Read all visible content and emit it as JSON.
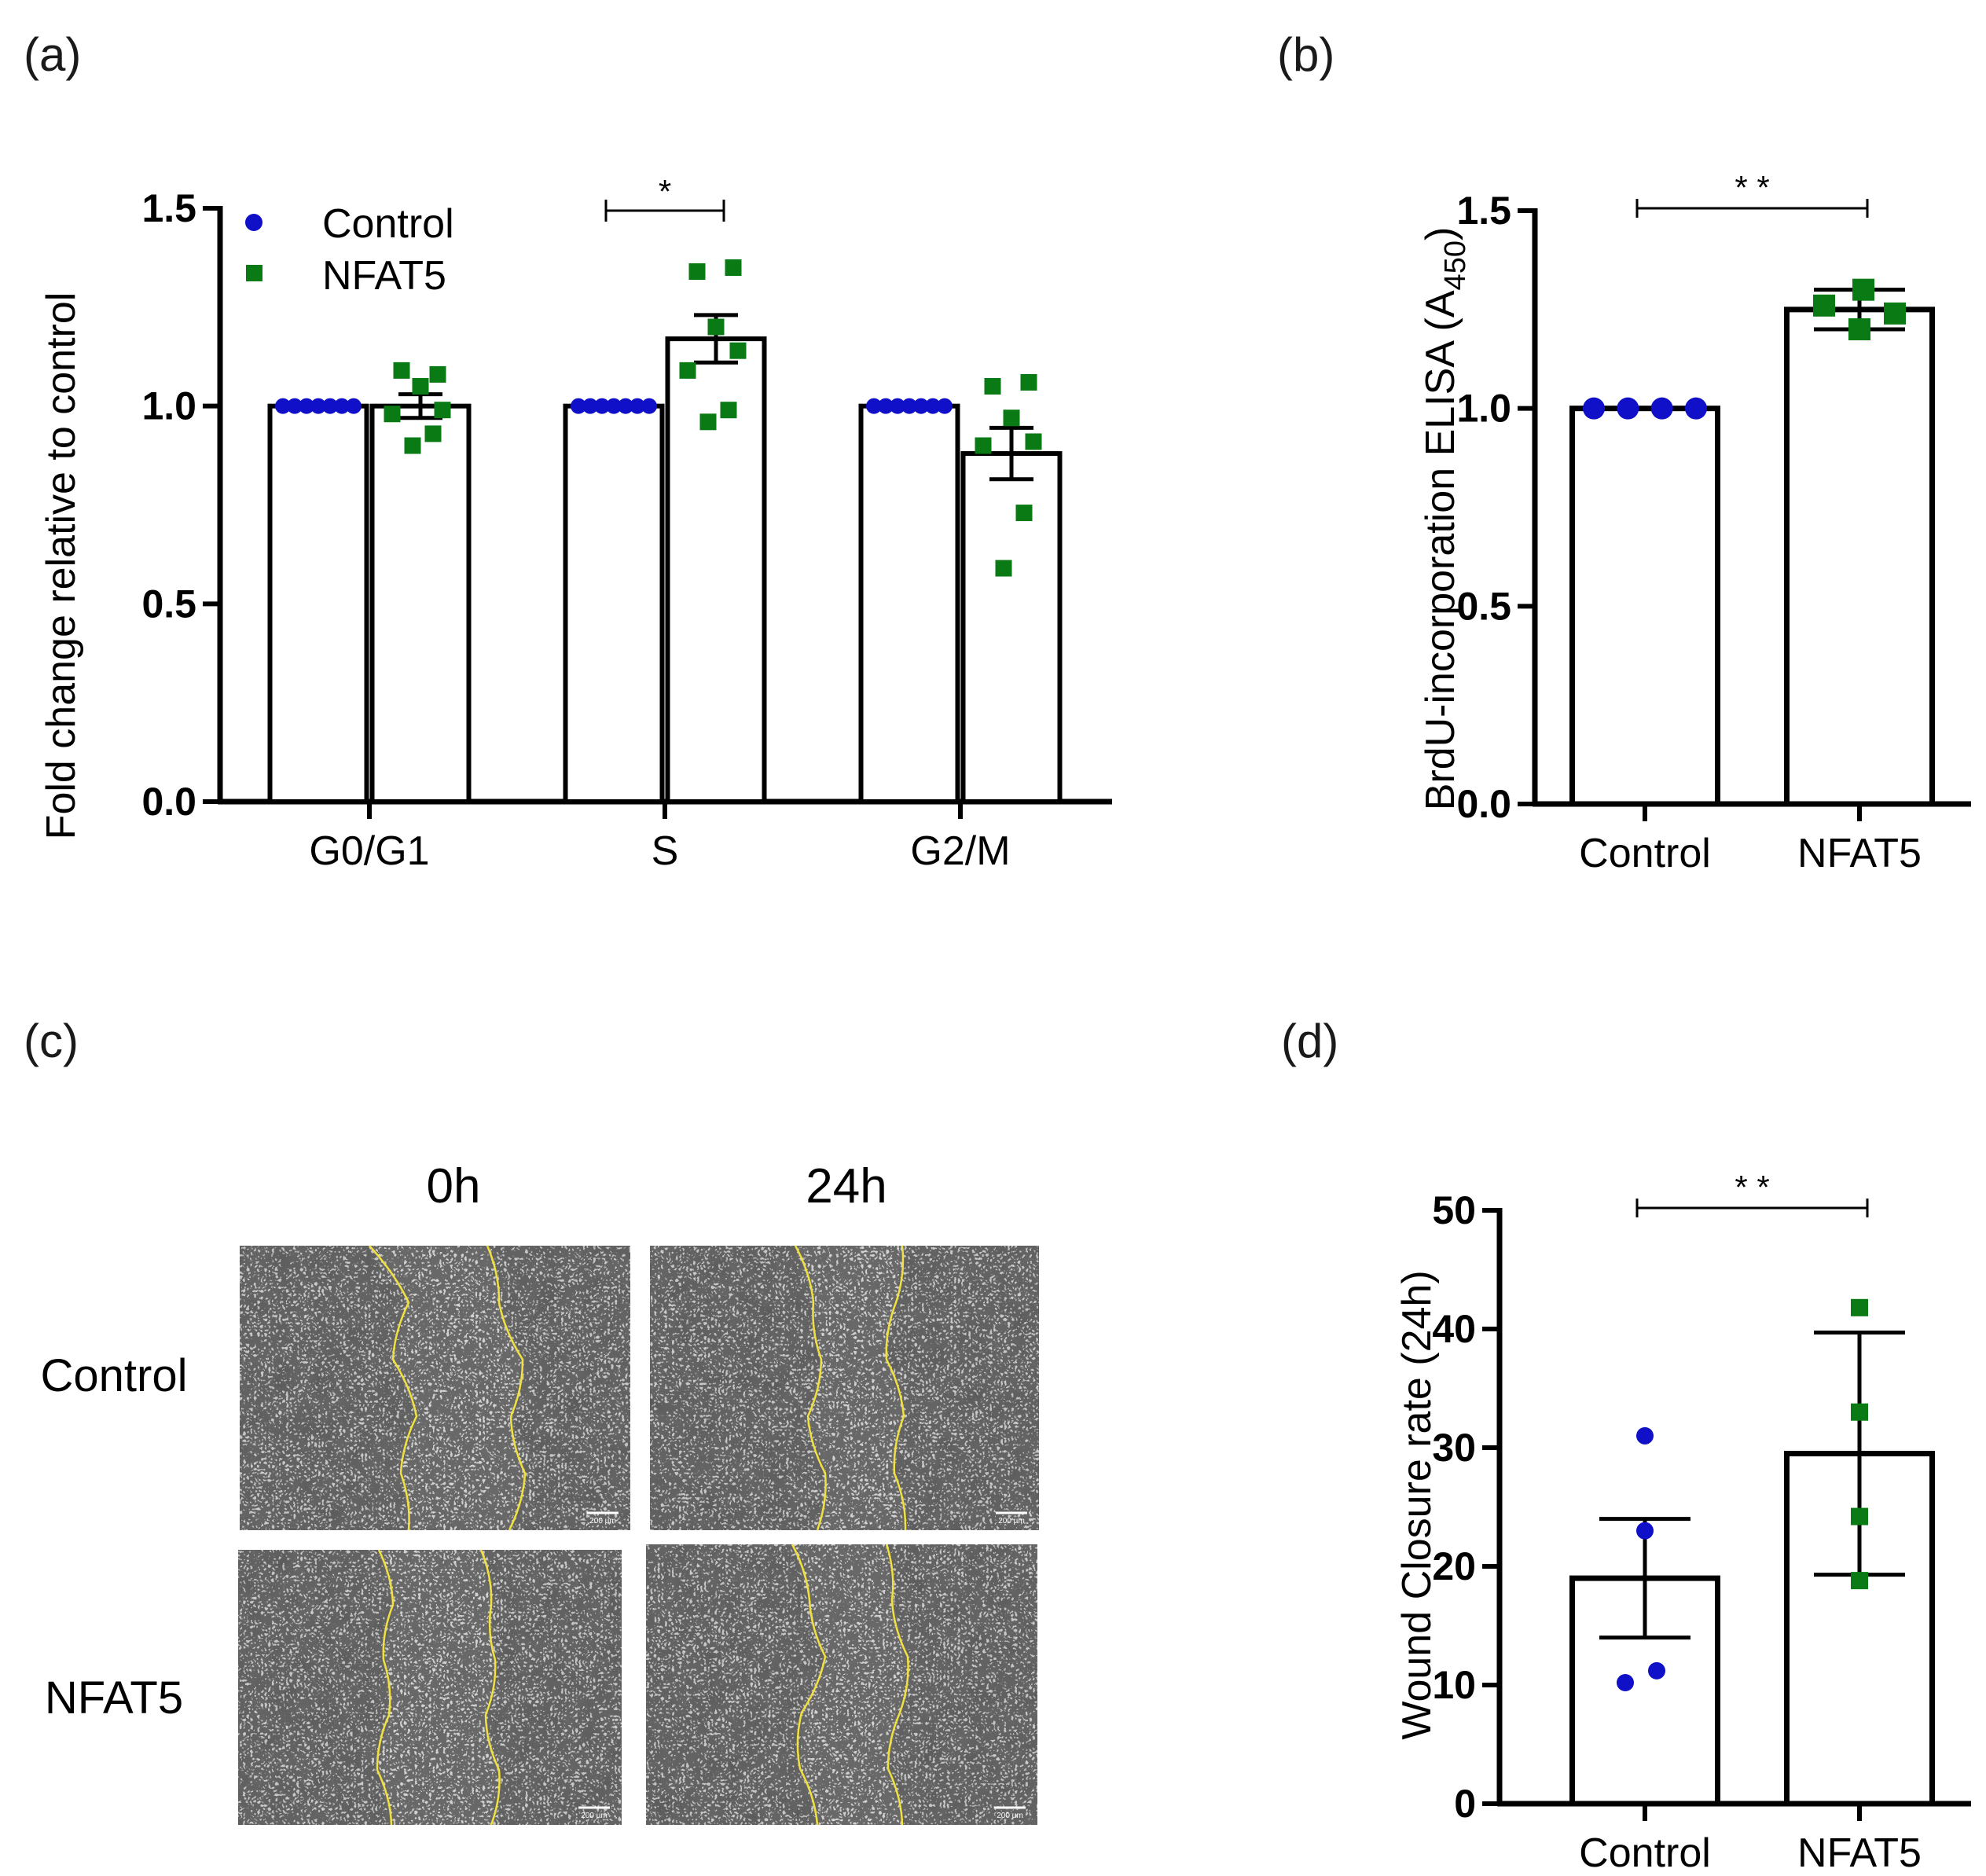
{
  "panels": {
    "a": "(a)",
    "b": "(b)",
    "c": "(c)",
    "d": "(d)"
  },
  "colors": {
    "control": "#1010c8",
    "nfat5": "#0a7a14",
    "bar_fill": "#ffffff",
    "bar_stroke": "#000000",
    "boundary": "#f0e040"
  },
  "chart_data": [
    {
      "id": "a",
      "type": "bar",
      "title": "",
      "ylabel": "Fold change relative to control",
      "xlabel": "",
      "ylim": [
        0,
        1.5
      ],
      "yticks": [
        "0.0",
        "0.5",
        "1.0",
        "1.5"
      ],
      "categories": [
        "G0/G1",
        "S",
        "G2/M"
      ],
      "legend": {
        "position": "top-left",
        "entries": [
          "Control",
          "NFAT5"
        ]
      },
      "series": [
        {
          "name": "Control",
          "marker": "circle",
          "values": [
            1.0,
            1.0,
            1.0
          ],
          "error": [
            0,
            0,
            0
          ],
          "points": [
            [
              1,
              1,
              1,
              1,
              1,
              1,
              1
            ],
            [
              1,
              1,
              1,
              1,
              1,
              1,
              1
            ],
            [
              1,
              1,
              1,
              1,
              1,
              1,
              1
            ]
          ]
        },
        {
          "name": "NFAT5",
          "marker": "square",
          "values": [
            1.0,
            1.17,
            0.88
          ],
          "error": [
            0.03,
            0.06,
            0.065
          ],
          "points": [
            [
              1.09,
              1.08,
              1.05,
              0.99,
              0.98,
              0.93,
              0.9
            ],
            [
              1.34,
              1.35,
              1.2,
              1.14,
              1.09,
              0.99,
              0.96
            ],
            [
              1.05,
              1.06,
              0.97,
              0.91,
              0.9,
              0.73,
              0.59
            ]
          ]
        }
      ],
      "significance": [
        {
          "category": "S",
          "label": "*"
        }
      ]
    },
    {
      "id": "b",
      "type": "bar",
      "title": "",
      "ylabel_main": "BrdU-incorporation ELISA (A",
      "ylabel_sub": "450",
      "ylabel_end": ")",
      "xlabel": "",
      "ylim": [
        0,
        1.5
      ],
      "yticks": [
        "0.0",
        "0.5",
        "1.0",
        "1.5"
      ],
      "categories": [
        "Control",
        "NFAT5"
      ],
      "values": [
        1.0,
        1.25
      ],
      "error": [
        0,
        0.05
      ],
      "points": [
        [
          1.0,
          1.0,
          1.0,
          1.0
        ],
        [
          1.26,
          1.3,
          1.24,
          1.2
        ]
      ],
      "markers": [
        "circle",
        "square"
      ],
      "significance": {
        "label": "* *"
      }
    },
    {
      "id": "d",
      "type": "bar",
      "title": "",
      "ylabel": "Wound Closure rate (24h)",
      "xlabel": "",
      "ylim": [
        0,
        50
      ],
      "yticks": [
        "0",
        "10",
        "20",
        "30",
        "40",
        "50"
      ],
      "categories": [
        "Control",
        "NFAT5"
      ],
      "values": [
        19.0,
        29.5
      ],
      "error": [
        5.0,
        10.2
      ],
      "points": [
        [
          31.0,
          23.0,
          11.2,
          10.2
        ],
        [
          41.8,
          33.0,
          24.2,
          18.8
        ]
      ],
      "markers": [
        "circle",
        "square"
      ],
      "significance": {
        "label": "* *"
      }
    }
  ],
  "panel_c": {
    "columns": [
      "0h",
      "24h"
    ],
    "rows": [
      "Control",
      "NFAT5"
    ],
    "scale_bar": "200 µm"
  }
}
